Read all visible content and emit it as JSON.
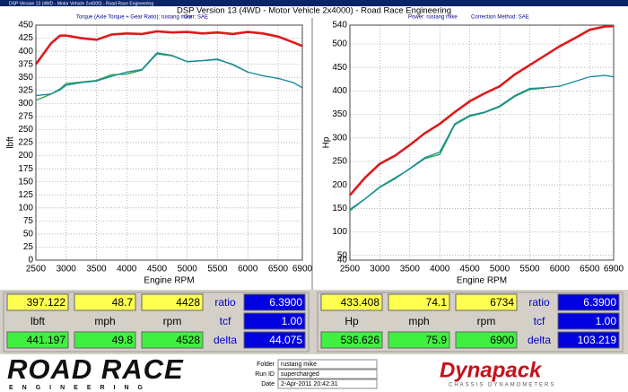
{
  "window": {
    "title": "DSP Version 13 (4WD - Motor Vehicle 2x4000) - Road Race Engineering"
  },
  "title": "DSP Version 13 (4WD - Motor Vehicle 2x4000) - Road Race Engineering",
  "chart_data": [
    {
      "type": "line",
      "header": [
        "Torque (Axle Torque + Gear Ratio): rustang mike",
        "Corr: SAE"
      ],
      "ylabel": "lbft",
      "xlabel": "Engine RPM",
      "x": [
        2500,
        2750,
        2900,
        3000,
        3250,
        3500,
        3750,
        4000,
        4250,
        4500,
        4750,
        5000,
        5250,
        5500,
        5750,
        6000,
        6250,
        6500,
        6750,
        6900
      ],
      "xlim": [
        2500,
        6900
      ],
      "ylim": [
        0,
        450
      ],
      "xticks": [
        2500,
        3000,
        3500,
        4000,
        4500,
        5000,
        5500,
        6000,
        6500,
        6900
      ],
      "yticks": [
        0,
        25,
        50,
        75,
        100,
        125,
        150,
        175,
        200,
        225,
        250,
        275,
        300,
        325,
        350,
        375,
        400,
        425,
        450
      ],
      "grid": true,
      "series": [
        {
          "color": "#2aa84a",
          "values": [
            306,
            318,
            328,
            338,
            341,
            344,
            355,
            356,
            364,
            395,
            391,
            380,
            382,
            385,
            374,
            360,
            null,
            null,
            null,
            null
          ]
        },
        {
          "color": "#1b8aa0",
          "values": [
            315,
            318,
            326,
            335,
            340,
            343,
            352,
            360,
            365,
            397,
            392,
            380,
            382,
            384,
            375,
            360,
            353,
            348,
            340,
            330
          ]
        },
        {
          "color": "#dd1a1a",
          "values": [
            375,
            415,
            430,
            430,
            425,
            422,
            432,
            434,
            433,
            438,
            436,
            437,
            434,
            436,
            433,
            437,
            434,
            428,
            417,
            410
          ]
        }
      ]
    },
    {
      "type": "line",
      "header": [
        "Power: rustang mike",
        "Correction Method: SAE"
      ],
      "ylabel": "Hp",
      "xlabel": "Engine RPM",
      "x": [
        2500,
        2750,
        3000,
        3250,
        3500,
        3750,
        4000,
        4250,
        4500,
        4750,
        5000,
        5250,
        5500,
        5750,
        6000,
        6250,
        6500,
        6750,
        6900
      ],
      "xlim": [
        2500,
        6900
      ],
      "ylim": [
        40,
        540
      ],
      "xticks": [
        2500,
        3000,
        3500,
        4000,
        4500,
        5000,
        5500,
        6000,
        6500,
        6900
      ],
      "yticks": [
        40,
        50,
        100,
        150,
        200,
        250,
        300,
        350,
        400,
        450,
        500,
        540
      ],
      "grid": true,
      "series": [
        {
          "color": "#2aa84a",
          "values": [
            145,
            170,
            196,
            215,
            234,
            256,
            265,
            328,
            346,
            354,
            366,
            388,
            403,
            406,
            null,
            null,
            null,
            null,
            null
          ]
        },
        {
          "color": "#1b8aa0",
          "values": [
            148,
            170,
            195,
            213,
            235,
            258,
            270,
            330,
            348,
            355,
            368,
            390,
            405,
            407,
            410,
            420,
            430,
            433,
            430
          ]
        },
        {
          "color": "#dd1a1a",
          "values": [
            178,
            215,
            245,
            262,
            285,
            310,
            330,
            355,
            378,
            395,
            410,
            435,
            455,
            475,
            495,
            512,
            530,
            537,
            538
          ]
        }
      ]
    }
  ],
  "panels": [
    {
      "rows": [
        [
          "397.122",
          "48.7",
          "4428",
          "ratio",
          "6.3900"
        ],
        [
          "lbft",
          "mph",
          "rpm",
          "tcf",
          "1.00"
        ],
        [
          "441.197",
          "49.8",
          "4528",
          "delta",
          "44.075"
        ]
      ]
    },
    {
      "rows": [
        [
          "433.408",
          "74.1",
          "6734",
          "ratio",
          "6.3900"
        ],
        [
          "Hp",
          "mph",
          "rpm",
          "tcf",
          "1.00"
        ],
        [
          "536.626",
          "75.9",
          "6900",
          "delta",
          "103.219"
        ]
      ]
    }
  ],
  "footer": {
    "logo": {
      "main": "ROAD RACE",
      "sub": "ENGINEERING"
    },
    "fields": [
      [
        "Folder",
        "rustang mike"
      ],
      [
        "Run ID",
        "supercharged"
      ],
      [
        "Date",
        "2-Apr-2011 20:42:31"
      ]
    ],
    "brand": {
      "name": "Dynapack",
      "sub": "CHASSIS DYNAMOMETERS"
    }
  }
}
